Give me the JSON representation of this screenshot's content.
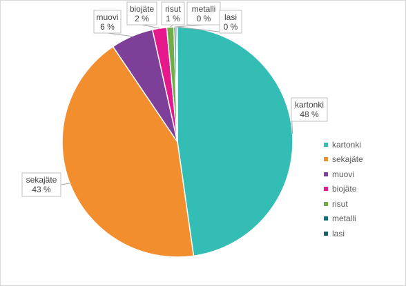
{
  "chart_data": {
    "type": "pie",
    "title": "",
    "legend_position": "right",
    "slices": [
      {
        "label": "kartonki",
        "value": 48,
        "display": "48 %",
        "color": "#33bdb4"
      },
      {
        "label": "sekajäte",
        "value": 43,
        "display": "43 %",
        "color": "#f28e2e"
      },
      {
        "label": "muovi",
        "value": 6,
        "display": "6 %",
        "color": "#7e3f98"
      },
      {
        "label": "biojäte",
        "value": 2,
        "display": "2 %",
        "color": "#e6198c"
      },
      {
        "label": "risut",
        "value": 1,
        "display": "1 %",
        "color": "#70ad47"
      },
      {
        "label": "metalli",
        "value": 0.3,
        "display": "0 %",
        "color": "#0f6f78"
      },
      {
        "label": "lasi",
        "value": 0.2,
        "display": "0 %",
        "color": "#1b5e63"
      }
    ]
  }
}
